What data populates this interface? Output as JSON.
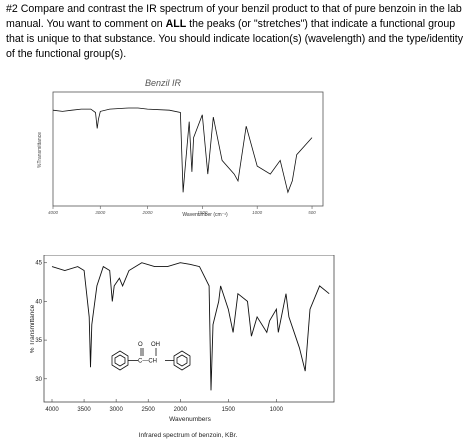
{
  "question": {
    "prefix": "#2 Compare and contrast the IR spectrum of your benzil product to that of pure benzoin in the lab manual. You want to comment on ",
    "emphasis": "ALL",
    "suffix": " the peaks (or \"stretches\") that indicate a functional group that is unique to that substance. You should indicate location(s) (wavelength) and the type/identity of the functional group(s)."
  },
  "benzil_panel": {
    "handwritten_title": "Benzil IR",
    "ylabel": "%Transmittance",
    "xlabel": "Wavenumber (cm⁻¹)",
    "x_ticks": [
      "4000",
      "3000",
      "2000",
      "1500",
      "1000",
      "500"
    ]
  },
  "benzoin_panel": {
    "caption": "Infrared spectrum of benzoin, KBr.",
    "structure_labels": {
      "oh": "OH",
      "o": "O",
      "ch": "C—CH"
    }
  },
  "chart_data": [
    {
      "type": "line",
      "title": "Benzil IR",
      "xlabel": "Wavenumber (cm⁻¹)",
      "ylabel": "%Transmittance",
      "xlim": [
        4000,
        400
      ],
      "grid": false,
      "series": [
        {
          "x": [
            4000,
            3800,
            3600,
            3400,
            3200,
            3100,
            3065,
            3040,
            3000,
            2800,
            2400,
            2200,
            2000,
            1800,
            1700,
            1675,
            1660,
            1620,
            1595,
            1580,
            1500,
            1450,
            1400,
            1320,
            1210,
            1175,
            1100,
            1000,
            880,
            790,
            720,
            680,
            640,
            500
          ],
          "y": [
            84,
            83,
            84,
            85,
            85,
            82,
            68,
            76,
            83,
            85,
            86,
            86,
            85,
            84,
            82,
            12,
            30,
            74,
            30,
            60,
            80,
            28,
            78,
            40,
            28,
            22,
            70,
            35,
            28,
            40,
            12,
            22,
            45,
            60
          ]
        }
      ]
    },
    {
      "type": "line",
      "title": "Infrared spectrum of benzoin, KBr.",
      "xlabel": "Wavenumbers",
      "ylabel": "% Transmittance",
      "xlim": [
        4000,
        400
      ],
      "ylim": [
        27,
        46
      ],
      "y_ticks": [
        30,
        35,
        40,
        45
      ],
      "x_ticks": [
        4000,
        3500,
        3000,
        2500,
        2000,
        1500,
        1000
      ],
      "grid": false,
      "series": [
        {
          "x": [
            4000,
            3800,
            3600,
            3500,
            3420,
            3400,
            3380,
            3300,
            3200,
            3100,
            3060,
            3030,
            2950,
            2900,
            2800,
            2600,
            2400,
            2200,
            2000,
            1900,
            1800,
            1700,
            1680,
            1660,
            1600,
            1580,
            1500,
            1450,
            1400,
            1300,
            1260,
            1200,
            1100,
            1070,
            1000,
            980,
            900,
            870,
            760,
            700,
            650,
            550,
            450
          ],
          "y": [
            44.5,
            44,
            44.5,
            44,
            38,
            31.5,
            37,
            42,
            44.5,
            44,
            40,
            42,
            43,
            42,
            44,
            45,
            44.5,
            44.5,
            45,
            44.8,
            44.5,
            42,
            28.5,
            37,
            40,
            42,
            39,
            36,
            41,
            40,
            35.5,
            38,
            36,
            37.5,
            39,
            36,
            41,
            38,
            34,
            31,
            39,
            42,
            41
          ]
        }
      ]
    }
  ]
}
